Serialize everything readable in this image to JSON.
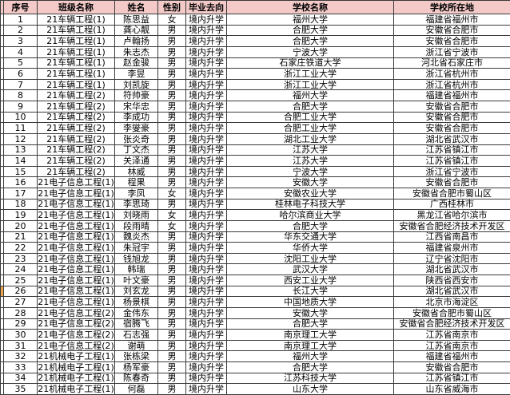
{
  "colors": {
    "header_bg": "#f3cac8",
    "border": "#3a3a3a",
    "highlight_strip": "#eaa54d",
    "row_bg": "#ffffff",
    "text": "#000000"
  },
  "highlight_row": 26,
  "table": {
    "headers": [
      "序号",
      "班级名称",
      "姓名",
      "性别",
      "毕业去向",
      "学校名称",
      "学校所在地"
    ],
    "rows": [
      [
        "1",
        "21车辆工程(1)",
        "陈思益",
        "女",
        "境内升学",
        "福州大学",
        "福建省福州市"
      ],
      [
        "2",
        "21车辆工程(1)",
        "龚心靓",
        "男",
        "境内升学",
        "合肥大学",
        "安徽省合肥市"
      ],
      [
        "3",
        "21车辆工程(1)",
        "卢翰扬",
        "男",
        "境内升学",
        "合肥大学",
        "安徽省合肥市"
      ],
      [
        "4",
        "21车辆工程(1)",
        "朱志杰",
        "男",
        "境内升学",
        "宁波大学",
        "浙江省宁波市"
      ],
      [
        "5",
        "21车辆工程(1)",
        "赵金骏",
        "男",
        "境内升学",
        "石家庄铁道大学",
        "河北省石家庄市"
      ],
      [
        "6",
        "21车辆工程(1)",
        "李昱",
        "男",
        "境内升学",
        "浙江工业大学",
        "浙江省杭州市"
      ],
      [
        "7",
        "21车辆工程(1)",
        "刘凯旋",
        "男",
        "境内升学",
        "浙江工业大学",
        "浙江省杭州市"
      ],
      [
        "8",
        "21车辆工程(2)",
        "符帅豪",
        "男",
        "境内升学",
        "福州大学",
        "福建省福州市"
      ],
      [
        "9",
        "21车辆工程(2)",
        "宋华忠",
        "男",
        "境内升学",
        "合肥大学",
        "安徽省合肥市"
      ],
      [
        "10",
        "21车辆工程(2)",
        "李成功",
        "男",
        "境内升学",
        "合肥工业大学",
        "安徽省合肥市"
      ],
      [
        "11",
        "21车辆工程(2)",
        "李燮豪",
        "男",
        "境内升学",
        "合肥工业大学",
        "安徽省合肥市"
      ],
      [
        "12",
        "21车辆工程(2)",
        "张炎奇",
        "男",
        "境内升学",
        "湖北工业大学",
        "湖北省武汉市"
      ],
      [
        "13",
        "21车辆工程(2)",
        "丁文杰",
        "男",
        "境内升学",
        "江苏大学",
        "江苏省镇江市"
      ],
      [
        "14",
        "21车辆工程(2)",
        "关泽通",
        "男",
        "境内升学",
        "江苏大学",
        "江苏省镇江市"
      ],
      [
        "15",
        "21车辆工程(2)",
        "林威",
        "男",
        "境内升学",
        "宁波大学",
        "浙江省宁波市"
      ],
      [
        "16",
        "21电子信息工程(1)",
        "程果",
        "男",
        "境内升学",
        "安徽大学",
        "安徽省合肥市"
      ],
      [
        "17",
        "21电子信息工程(1)",
        "李凤",
        "女",
        "境内升学",
        "安徽农业大学",
        "安徽省合肥市蜀山区"
      ],
      [
        "18",
        "21电子信息工程(1)",
        "李思琦",
        "男",
        "境内升学",
        "桂林电子科技大学",
        "广西桂林市"
      ],
      [
        "19",
        "21电子信息工程(1)",
        "刘晓雨",
        "女",
        "境内升学",
        "哈尔滨商业大学",
        "黑龙江省哈尔滨市"
      ],
      [
        "20",
        "21电子信息工程(1)",
        "段雨晴",
        "女",
        "境内升学",
        "合肥大学",
        "安徽省合肥经济技术开发区"
      ],
      [
        "21",
        "21电子信息工程(1)",
        "魏炎杰",
        "男",
        "境内升学",
        "华东交通大学",
        "江西省南昌市"
      ],
      [
        "22",
        "21电子信息工程(1)",
        "朱冠宇",
        "男",
        "境内升学",
        "华侨大学",
        "福建省泉州市"
      ],
      [
        "23",
        "21电子信息工程(1)",
        "钱旭龙",
        "男",
        "境内升学",
        "沈阳工业大学",
        "辽宁省沈阳市"
      ],
      [
        "24",
        "21电子信息工程(1)",
        "韩瑞",
        "男",
        "境内升学",
        "武汉大学",
        "湖北省武汉市"
      ],
      [
        "25",
        "21电子信息工程(1)",
        "叶文豪",
        "男",
        "境内升学",
        "西安工业大学",
        "陕西省西安市"
      ],
      [
        "26",
        "21电子信息工程(1)",
        "刘玄龙",
        "男",
        "境内升学",
        "长江大学",
        "湖北省武汉市"
      ],
      [
        "27",
        "21电子信息工程(1)",
        "杨景棋",
        "男",
        "境内升学",
        "中国地质大学",
        "北京市海淀区"
      ],
      [
        "28",
        "21电子信息工程(2)",
        "金伟东",
        "男",
        "境内升学",
        "安徽大学",
        "安徽省合肥市蜀山区"
      ],
      [
        "29",
        "21电子信息工程(2)",
        "宿腾飞",
        "男",
        "境内升学",
        "合肥大学",
        "安徽省合肥经济技术开发区"
      ],
      [
        "30",
        "21电子信息工程(2)",
        "石志强",
        "男",
        "境内升学",
        "南京理工大学",
        "江苏省南京市"
      ],
      [
        "31",
        "21电子信息工程(2)",
        "谢萌",
        "男",
        "境内升学",
        "南京理工大学",
        "江苏省南京市"
      ],
      [
        "32",
        "21机械电子工程(1)",
        "张栋梁",
        "男",
        "境内升学",
        "福州大学",
        "福建省福州市"
      ],
      [
        "33",
        "21机械电子工程(1)",
        "杨军豪",
        "男",
        "境内升学",
        "合肥大学",
        "安徽省合肥市"
      ],
      [
        "34",
        "21机械电子工程(1)",
        "陈春奇",
        "男",
        "境内升学",
        "江苏科技大学",
        "江苏省镇江市"
      ],
      [
        "35",
        "21机械电子工程(1)",
        "何磊",
        "男",
        "境内升学",
        "山东大学",
        "山东省威海市"
      ]
    ]
  }
}
